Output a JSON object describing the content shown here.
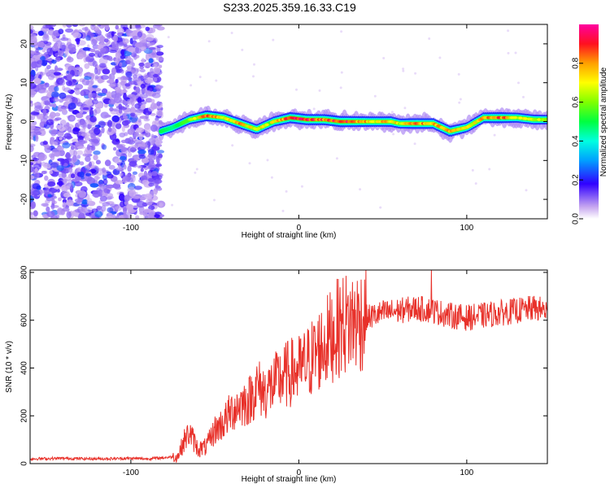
{
  "title": "S233.2025.359.16.33.C19",
  "chart_data": [
    {
      "type": "heatmap",
      "xlabel": "Height of straight line (km)",
      "ylabel": "Frequency (Hz)",
      "xlim": [
        -160,
        148
      ],
      "ylim": [
        -25,
        25
      ],
      "xticks": [
        {
          "v": -100,
          "label": "-100"
        },
        {
          "v": 0,
          "label": "0"
        },
        {
          "v": 100,
          "label": "100"
        }
      ],
      "yticks": [
        {
          "v": -20,
          "label": "-20"
        },
        {
          "v": -10,
          "label": "-10"
        },
        {
          "v": 0,
          "label": "0"
        },
        {
          "v": 10,
          "label": "10"
        },
        {
          "v": 20,
          "label": "20"
        }
      ],
      "noise_region": {
        "x_from": -160,
        "x_to": -82,
        "amplitude_max": 0.25
      },
      "ridge": [
        {
          "x": -82,
          "f": -2.5,
          "amp": 0.5
        },
        {
          "x": -75,
          "f": -1.5,
          "amp": 0.45
        },
        {
          "x": -65,
          "f": 0.5,
          "amp": 0.6
        },
        {
          "x": -55,
          "f": 1.5,
          "amp": 0.9
        },
        {
          "x": -45,
          "f": 1.0,
          "amp": 0.75
        },
        {
          "x": -35,
          "f": -0.5,
          "amp": 0.8
        },
        {
          "x": -25,
          "f": -2.0,
          "amp": 0.7
        },
        {
          "x": -15,
          "f": 0.0,
          "amp": 0.7
        },
        {
          "x": -5,
          "f": 1.0,
          "amp": 0.95
        },
        {
          "x": 5,
          "f": 0.5,
          "amp": 0.95
        },
        {
          "x": 15,
          "f": 0.5,
          "amp": 0.9
        },
        {
          "x": 25,
          "f": 0.0,
          "amp": 0.95
        },
        {
          "x": 35,
          "f": 0.0,
          "amp": 0.85
        },
        {
          "x": 45,
          "f": 0.0,
          "amp": 0.75
        },
        {
          "x": 55,
          "f": 0.0,
          "amp": 0.8
        },
        {
          "x": 60,
          "f": -0.5,
          "amp": 0.7
        },
        {
          "x": 70,
          "f": -0.5,
          "amp": 0.85
        },
        {
          "x": 80,
          "f": -0.5,
          "amp": 0.8
        },
        {
          "x": 90,
          "f": -2.5,
          "amp": 0.9
        },
        {
          "x": 100,
          "f": -1.5,
          "amp": 0.7
        },
        {
          "x": 110,
          "f": 1.0,
          "amp": 0.8
        },
        {
          "x": 120,
          "f": 1.0,
          "amp": 0.9
        },
        {
          "x": 130,
          "f": 1.0,
          "amp": 0.7
        },
        {
          "x": 140,
          "f": 0.5,
          "amp": 0.7
        },
        {
          "x": 148,
          "f": 0.5,
          "amp": 0.6
        }
      ],
      "colorbar": {
        "label": "Normalized spectral amplitude",
        "range": [
          0,
          1
        ],
        "ticks": [
          {
            "v": 0.0,
            "label": "0.0"
          },
          {
            "v": 0.2,
            "label": "0.2"
          },
          {
            "v": 0.4,
            "label": "0.4"
          },
          {
            "v": 0.6,
            "label": "0.6"
          },
          {
            "v": 0.8,
            "label": "0.8"
          }
        ]
      }
    },
    {
      "type": "line",
      "xlabel": "Height of straight line (km)",
      "ylabel": "SNR (10 * v/v)",
      "xlim": [
        -160,
        148
      ],
      "ylim": [
        0,
        810
      ],
      "color": "#e8312a",
      "xticks": [
        {
          "v": -100,
          "label": "-100"
        },
        {
          "v": 0,
          "label": "0"
        },
        {
          "v": 100,
          "label": "100"
        }
      ],
      "yticks": [
        {
          "v": 0,
          "label": "0"
        },
        {
          "v": 200,
          "label": "200"
        },
        {
          "v": 400,
          "label": "400"
        },
        {
          "v": 600,
          "label": "600"
        },
        {
          "v": 800,
          "label": "800"
        }
      ],
      "series": [
        {
          "name": "SNR",
          "x": [
            -160,
            -140,
            -120,
            -100,
            -90,
            -80,
            -72,
            -68,
            -65,
            -60,
            -55,
            -50,
            -45,
            -40,
            -35,
            -30,
            -25,
            -20,
            -15,
            -10,
            -5,
            0,
            5,
            10,
            15,
            20,
            25,
            30,
            35,
            40,
            45,
            50,
            60,
            70,
            80,
            90,
            100,
            110,
            120,
            130,
            140,
            148
          ],
          "y": [
            20,
            22,
            20,
            22,
            20,
            25,
            30,
            100,
            130,
            60,
            70,
            140,
            170,
            220,
            250,
            260,
            320,
            300,
            330,
            360,
            380,
            390,
            420,
            460,
            500,
            540,
            580,
            590,
            600,
            610,
            620,
            630,
            640,
            650,
            640,
            620,
            610,
            620,
            630,
            640,
            650,
            640
          ],
          "spike": {
            "x": 79,
            "y": 810
          }
        }
      ]
    }
  ]
}
